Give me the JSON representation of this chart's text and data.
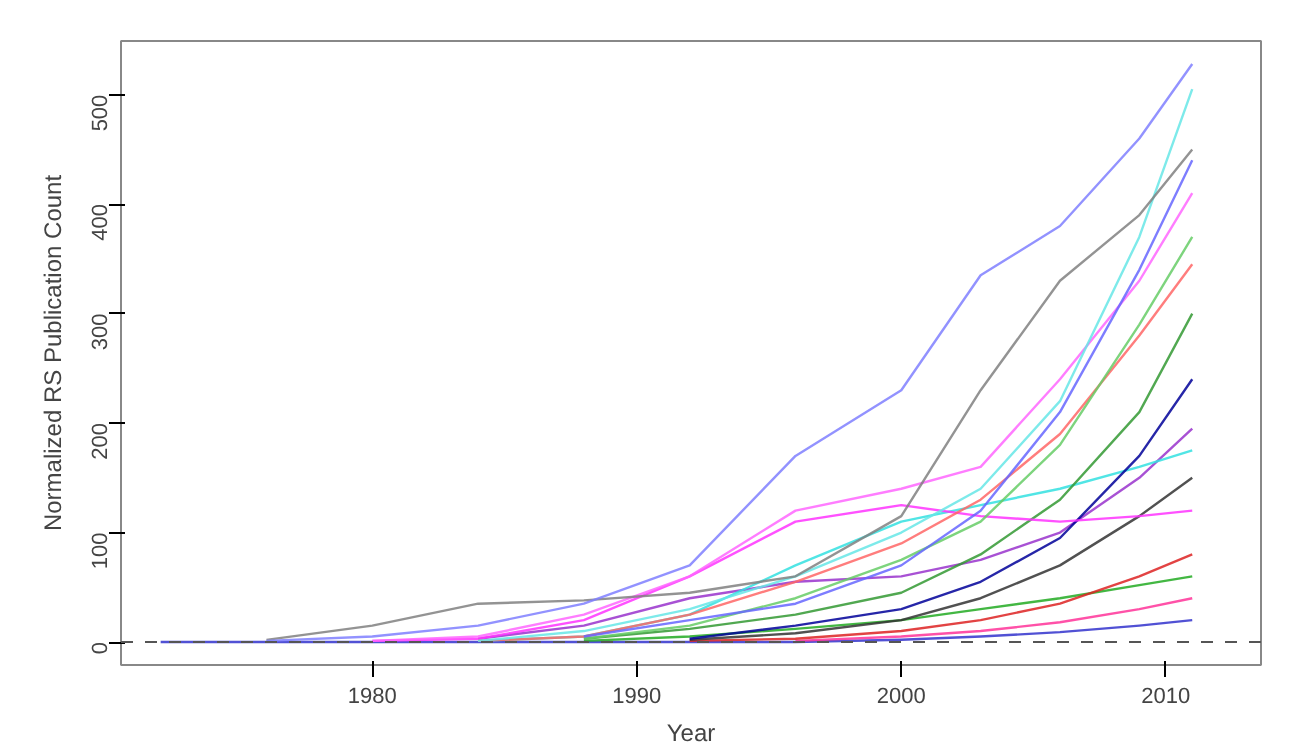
{
  "chart_data": {
    "type": "line",
    "xlabel": "Year",
    "ylabel": "Normalized RS Publication Count",
    "x": [
      1972,
      1976,
      1980,
      1984,
      1988,
      1992,
      1996,
      2000,
      2003,
      2006,
      2009,
      2011
    ],
    "xlim": [
      1970.5,
      2013.6
    ],
    "ylim": [
      -21,
      549
    ],
    "xticks": [
      1980,
      1990,
      2000,
      2010
    ],
    "yticks": [
      0,
      100,
      200,
      300,
      400,
      500
    ],
    "grid": false,
    "line_style": "solid",
    "marker": "none",
    "ref_lines": [
      {
        "axis": "y",
        "value": 0,
        "label": null,
        "color": "#555555",
        "line_style": "dashed"
      }
    ],
    "series": [
      {
        "color": "#7f7fff",
        "values": [
          null,
          1,
          5,
          15,
          35,
          70,
          170,
          230,
          335,
          380,
          460,
          528
        ]
      },
      {
        "color": "#808080",
        "values": [
          null,
          2,
          15,
          35,
          38,
          45,
          60,
          115,
          230,
          330,
          390,
          450
        ]
      },
      {
        "color": "#66e6e6",
        "values": [
          null,
          null,
          null,
          1,
          10,
          30,
          60,
          100,
          140,
          220,
          370,
          505
        ]
      },
      {
        "color": "#6666ff",
        "values": [
          null,
          null,
          null,
          null,
          5,
          20,
          35,
          70,
          120,
          210,
          340,
          440
        ]
      },
      {
        "color": "#ff66ff",
        "values": [
          null,
          null,
          1,
          5,
          25,
          60,
          120,
          140,
          160,
          240,
          330,
          410
        ]
      },
      {
        "color": "#66cc66",
        "values": [
          null,
          null,
          null,
          null,
          3,
          15,
          40,
          75,
          110,
          180,
          290,
          370
        ]
      },
      {
        "color": "#ff6666",
        "values": [
          null,
          null,
          null,
          1,
          5,
          25,
          55,
          90,
          130,
          190,
          280,
          345
        ]
      },
      {
        "color": "#ff33ff",
        "values": [
          null,
          null,
          1,
          3,
          20,
          60,
          110,
          125,
          115,
          110,
          115,
          120
        ]
      },
      {
        "color": "#339933",
        "values": [
          null,
          null,
          null,
          null,
          3,
          12,
          25,
          45,
          80,
          130,
          210,
          300
        ]
      },
      {
        "color": "#000099",
        "values": [
          null,
          null,
          null,
          null,
          null,
          3,
          15,
          30,
          55,
          95,
          170,
          240
        ]
      },
      {
        "color": "#33e0e0",
        "values": [
          null,
          null,
          null,
          1,
          5,
          25,
          70,
          110,
          125,
          140,
          160,
          175
        ]
      },
      {
        "color": "#9933cc",
        "values": [
          null,
          null,
          null,
          3,
          15,
          40,
          55,
          60,
          75,
          100,
          150,
          195
        ]
      },
      {
        "color": "#333333",
        "values": [
          null,
          null,
          null,
          null,
          null,
          2,
          8,
          20,
          40,
          70,
          115,
          150
        ]
      },
      {
        "color": "#dd2222",
        "values": [
          null,
          null,
          null,
          null,
          null,
          1,
          3,
          10,
          20,
          35,
          60,
          80
        ]
      },
      {
        "color": "#22aa22",
        "values": [
          null,
          null,
          null,
          null,
          1,
          5,
          12,
          20,
          30,
          40,
          52,
          60
        ]
      },
      {
        "color": "#ff3399",
        "values": [
          null,
          null,
          null,
          null,
          null,
          null,
          1,
          5,
          10,
          18,
          30,
          40
        ]
      },
      {
        "color": "#3333cc",
        "values": [
          0,
          0,
          0,
          0,
          0,
          0,
          0,
          2,
          5,
          9,
          15,
          20
        ]
      }
    ]
  }
}
